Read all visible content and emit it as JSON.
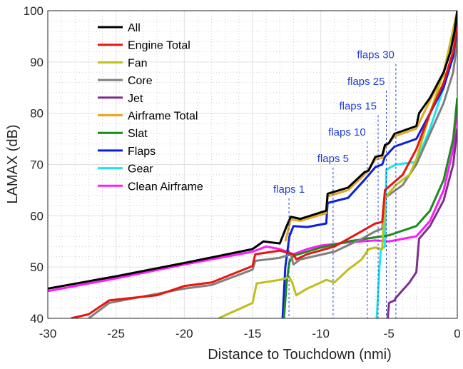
{
  "chart_data": {
    "type": "line",
    "xlabel": "Distance to Touchdown (nmi)",
    "ylabel": "LAMAX (dB)",
    "xlim": [
      -30,
      0
    ],
    "xticks": [
      -30,
      -25,
      -20,
      -15,
      -10,
      -5,
      0
    ],
    "ylim": [
      40,
      100
    ],
    "yticks": [
      40,
      50,
      60,
      70,
      80,
      90,
      100
    ],
    "grid": true,
    "minor_grid": true,
    "legend": "upper left",
    "series": [
      {
        "name": "All",
        "color": "#000000",
        "x": [
          -30,
          -25,
          -20,
          -15,
          -14.2,
          -13,
          -12.5,
          -12.2,
          -11.5,
          -9.6,
          -9.5,
          -8,
          -6.8,
          -6.5,
          -6,
          -5.5,
          -5.3,
          -5,
          -4.6,
          -3,
          -2.8,
          -2,
          -1,
          -0.5,
          -0.2,
          0
        ],
        "values": [
          45.8,
          48.2,
          50.8,
          53.5,
          55,
          54.6,
          58,
          59.8,
          59.4,
          61,
          64.3,
          65.5,
          68.5,
          68.8,
          71.5,
          71.8,
          73.8,
          74.2,
          76,
          77.5,
          80,
          83,
          88,
          92,
          96,
          100
        ]
      },
      {
        "name": "Engine Total",
        "color": "#e8150f",
        "x": [
          -28.3,
          -27,
          -25.5,
          -22,
          -20,
          -18,
          -15,
          -14.8,
          -13,
          -12,
          -11.8,
          -11,
          -9,
          -7,
          -6,
          -5.5,
          -5.3,
          -4,
          -3,
          -2,
          -1,
          -0.3,
          0
        ],
        "values": [
          40,
          40.8,
          43.5,
          44.5,
          46.3,
          47,
          50.2,
          52.5,
          53.2,
          52.5,
          51.5,
          52.5,
          54,
          57,
          58.5,
          58.8,
          65,
          68,
          73,
          80,
          86,
          92,
          97
        ]
      },
      {
        "name": "Fan",
        "color": "#bfbf1a",
        "x": [
          -17.5,
          -15,
          -14.7,
          -13,
          -12.3,
          -12.1,
          -11.8,
          -11,
          -10,
          -9.6,
          -9,
          -8,
          -7,
          -6.5,
          -6,
          -5.5,
          -5.3,
          -4.5,
          -3.5,
          -3,
          -2,
          -1,
          0
        ],
        "values": [
          40,
          43,
          46.8,
          47.5,
          48,
          47,
          44.5,
          45.8,
          47,
          47.5,
          47,
          49.5,
          51.5,
          53.5,
          53.8,
          53.5,
          63.5,
          66,
          68,
          71,
          80,
          88,
          100
        ]
      },
      {
        "name": "Core",
        "color": "#808080",
        "x": [
          -27,
          -25.5,
          -20,
          -18,
          -15,
          -14.8,
          -13,
          -12.2,
          -12,
          -11.5,
          -9,
          -7,
          -6,
          -5.5,
          -5.3,
          -4,
          -3,
          -2,
          -1,
          -0.3,
          0
        ],
        "values": [
          40,
          43,
          45.8,
          46.5,
          49.5,
          51.2,
          51.8,
          52.5,
          50.5,
          51.5,
          53,
          55.5,
          57,
          57.5,
          63.5,
          66,
          70,
          76,
          82,
          88,
          94
        ]
      },
      {
        "name": "Jet",
        "color": "#7e2f8e",
        "x": [
          -5.1,
          -5,
          -4.6,
          -4.5,
          -4,
          -3.5,
          -3,
          -2.8,
          -2,
          -1,
          -0.3,
          0
        ],
        "values": [
          40,
          43,
          43.5,
          44,
          45.5,
          47,
          49,
          55.5,
          58,
          63,
          70,
          77
        ]
      },
      {
        "name": "Airframe Total",
        "color": "#e6a823",
        "x": [
          -12.6,
          -12.2,
          -11.5,
          -9.6,
          -9.5,
          -8,
          -6.8,
          -6,
          -5.5,
          -5.3,
          -4.6,
          -3,
          -2,
          -1,
          0
        ],
        "values": [
          55,
          59.3,
          59,
          60.5,
          63.8,
          65,
          68,
          71,
          71.3,
          73.3,
          75.5,
          77,
          82.5,
          87.5,
          100
        ]
      },
      {
        "name": "Slat",
        "color": "#1a8c1a",
        "x": [
          -12.7,
          -12.5,
          -12.3,
          -12,
          -10,
          -8,
          -6,
          -5,
          -3,
          -2,
          -1,
          -0.3,
          0
        ],
        "values": [
          40,
          47,
          51,
          52.2,
          53.8,
          55,
          55.8,
          56.2,
          58,
          61,
          67,
          75,
          83
        ]
      },
      {
        "name": "Flaps",
        "color": "#0a1fe0",
        "x": [
          -12.8,
          -12.6,
          -12.3,
          -12,
          -11,
          -9.6,
          -9.5,
          -8,
          -6.8,
          -6,
          -5.5,
          -5.3,
          -4.6,
          -3,
          -2,
          -1,
          -0.2,
          0
        ],
        "values": [
          40,
          50,
          56,
          58,
          57.8,
          58.5,
          62.5,
          63.5,
          67,
          69.5,
          70,
          71.5,
          73.5,
          75,
          80,
          85,
          92,
          98
        ]
      },
      {
        "name": "Gear",
        "color": "#1ae6f0",
        "x": [
          -5.9,
          -5.7,
          -5.6,
          -5.3,
          -5.2,
          -4.5,
          -3,
          -2,
          -1,
          -0.2,
          0
        ],
        "values": [
          40,
          50,
          53.5,
          54,
          69,
          70,
          70.5,
          77,
          85,
          93,
          95
        ]
      },
      {
        "name": "Clean Airframe",
        "color": "#ff1aff",
        "x": [
          -30,
          -25,
          -20,
          -15,
          -14,
          -13,
          -12,
          -11,
          -10,
          -8,
          -6,
          -5,
          -4,
          -3,
          -2,
          -1,
          -0.3,
          0
        ],
        "values": [
          45.3,
          47.8,
          50.5,
          53,
          54,
          53.5,
          52.5,
          53.5,
          54.2,
          54.8,
          55.2,
          55,
          55.5,
          56,
          59,
          65,
          73,
          81
        ]
      }
    ],
    "annotations": [
      {
        "text": "flaps 1",
        "x": -12.33,
        "y": 63.4
      },
      {
        "text": "flaps 5",
        "x": -9.1,
        "y": 69.4
      },
      {
        "text": "flaps 10",
        "x": -6.6,
        "y": 74.5
      },
      {
        "text": "flaps 15",
        "x": -5.8,
        "y": 79.6
      },
      {
        "text": "flaps 25",
        "x": -5.2,
        "y": 84.4
      },
      {
        "text": "flaps 30",
        "x": -4.5,
        "y": 89.6
      }
    ]
  }
}
